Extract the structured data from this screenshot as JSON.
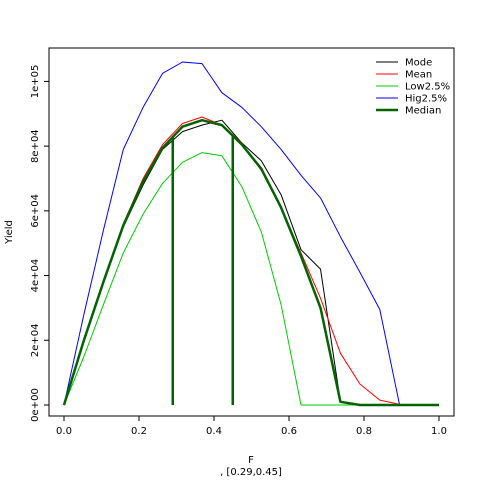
{
  "chart_data": {
    "type": "line",
    "xlabel": "F",
    "xlabel_sub": ", [0.29,0.45]",
    "ylabel": "Yield",
    "xlim": [
      0,
      1
    ],
    "ylim": [
      0,
      106000
    ],
    "x_ticks": [
      0,
      0.2,
      0.4,
      0.6,
      0.8,
      1
    ],
    "x_tick_labels": [
      "0.0",
      "0.2",
      "0.4",
      "0.6",
      "0.8",
      "1.0"
    ],
    "y_ticks": [
      0,
      20000,
      40000,
      60000,
      80000,
      100000
    ],
    "y_tick_labels": [
      "0e+00",
      "2e+04",
      "4e+04",
      "6e+04",
      "8e+04",
      "1e+05"
    ],
    "grid": false,
    "legend_position": "top-right",
    "x": [
      0,
      0.053,
      0.105,
      0.158,
      0.211,
      0.263,
      0.316,
      0.368,
      0.421,
      0.474,
      0.526,
      0.579,
      0.632,
      0.684,
      0.737,
      0.789,
      0.842,
      0.895,
      0.947,
      1
    ],
    "series": [
      {
        "name": "Mode",
        "color": "#000000",
        "width": 1,
        "values": [
          0,
          20000,
          38000,
          55000,
          68000,
          79000,
          84500,
          86500,
          88000,
          81000,
          75500,
          65000,
          48000,
          42000,
          1000,
          0,
          0,
          0,
          0,
          0
        ]
      },
      {
        "name": "Mean",
        "color": "#ff0000",
        "width": 1,
        "values": [
          0,
          20000,
          38500,
          56000,
          70000,
          80500,
          87000,
          89000,
          86500,
          81000,
          72500,
          61000,
          47000,
          33000,
          16000,
          6500,
          1500,
          200,
          0,
          0
        ]
      },
      {
        "name": "Low2.5%",
        "color": "#00cc00",
        "width": 1,
        "values": [
          0,
          15000,
          31000,
          47000,
          59000,
          68500,
          75000,
          78000,
          77000,
          67500,
          53500,
          31000,
          0,
          0,
          0,
          0,
          0,
          0,
          0,
          0
        ]
      },
      {
        "name": "Hig2.5%",
        "color": "#0000ff",
        "width": 1,
        "values": [
          0,
          28000,
          54000,
          79000,
          92000,
          102500,
          106000,
          105500,
          96500,
          92000,
          86000,
          79000,
          71000,
          64000,
          52000,
          41000,
          29500,
          0,
          0,
          0
        ]
      },
      {
        "name": "Median",
        "color": "#006400",
        "width": 2.5,
        "values": [
          0,
          20000,
          38000,
          55500,
          69000,
          79500,
          86000,
          88000,
          86500,
          80500,
          73000,
          61000,
          46000,
          30000,
          1000,
          0,
          0,
          0,
          0,
          0
        ]
      }
    ],
    "vlines": [
      {
        "x": 0.29,
        "y_top": 83000,
        "color": "#006400"
      },
      {
        "x": 0.45,
        "y_top": 83500,
        "color": "#006400"
      }
    ]
  }
}
